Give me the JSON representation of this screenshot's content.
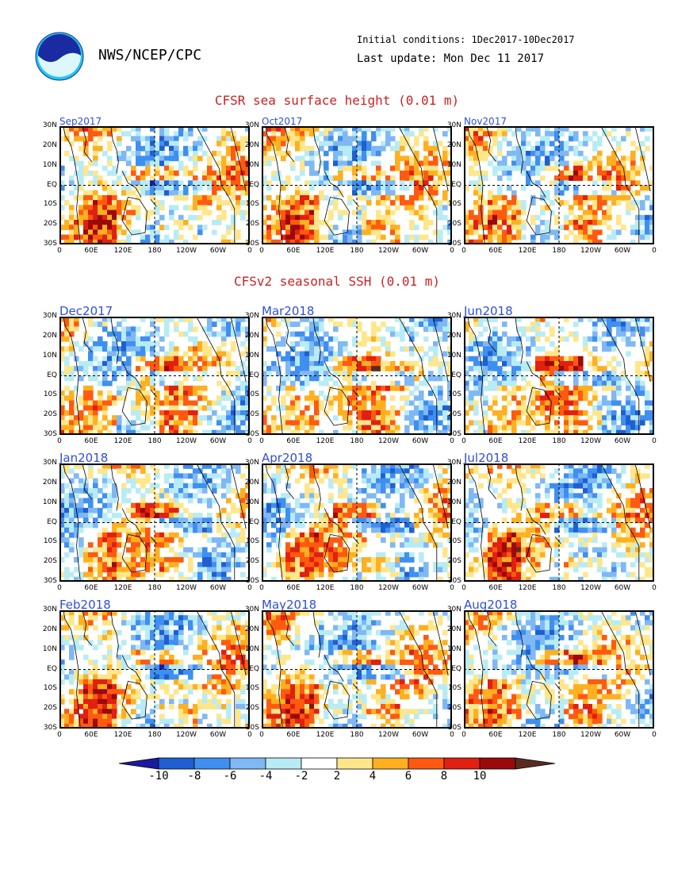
{
  "header": {
    "org": "NWS/NCEP/CPC",
    "logo_text": "NOAA",
    "initial_conditions": "Initial conditions: 1Dec2017-10Dec2017",
    "last_update": "Last update: Mon Dec 11 2017"
  },
  "sections": {
    "observed_title": "CFSR sea surface height (0.01 m)",
    "forecast_title": "CFSv2 seasonal SSH (0.01 m)"
  },
  "axes": {
    "lat_labels": [
      "30N",
      "20N",
      "10N",
      "EQ",
      "10S",
      "20S",
      "30S"
    ],
    "lon_labels": [
      "0",
      "60E",
      "120E",
      "180",
      "120W",
      "60W",
      "0"
    ]
  },
  "panels": [
    {
      "label": "Sep2017",
      "group": "observed"
    },
    {
      "label": "Oct2017",
      "group": "observed"
    },
    {
      "label": "Nov2017",
      "group": "observed"
    },
    {
      "label": "Dec2017",
      "group": "forecast"
    },
    {
      "label": "Mar2018",
      "group": "forecast"
    },
    {
      "label": "Jun2018",
      "group": "forecast"
    },
    {
      "label": "Jan2018",
      "group": "forecast"
    },
    {
      "label": "Apr2018",
      "group": "forecast"
    },
    {
      "label": "Jul2018",
      "group": "forecast"
    },
    {
      "label": "Feb2018",
      "group": "forecast"
    },
    {
      "label": "May2018",
      "group": "forecast"
    },
    {
      "label": "Aug2018",
      "group": "forecast"
    }
  ],
  "colorbar": {
    "labels": [
      "-10",
      "-8",
      "-6",
      "-4",
      "-2",
      "2",
      "4",
      "6",
      "8",
      "10"
    ],
    "colors": [
      "#1a1aa0",
      "#1f5fd0",
      "#3f8ff0",
      "#7fb8f5",
      "#b8ecf5",
      "#ffffff",
      "#ffe68a",
      "#ffb020",
      "#ff5a10",
      "#e02010",
      "#9a0a0a",
      "#5a2c20"
    ]
  }
}
